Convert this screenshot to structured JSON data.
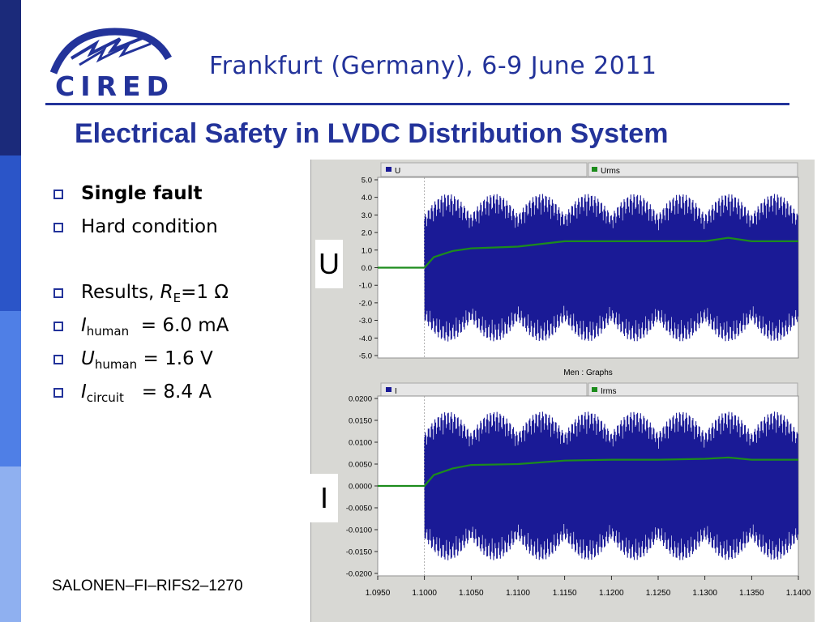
{
  "header": {
    "conference": "Frankfurt (Germany), 6-9 June 2011",
    "logo_text": "CIRED",
    "title": "Electrical Safety in LVDC Distribution System"
  },
  "bullets": [
    {
      "text": "Single fault",
      "bold": true
    },
    {
      "text": "Hard condition"
    },
    {
      "prefix": "Results, ",
      "sym": "R",
      "sub": "E",
      "rest": "=1 Ω"
    },
    {
      "sym": "I",
      "sub": "human",
      "rest": "= 6.0 mA"
    },
    {
      "sym": "U",
      "sub": "human",
      "rest": "= 1.6 V"
    },
    {
      "sym": "I",
      "sub": "circuit",
      "rest": "= 8.4 A"
    }
  ],
  "footer": "SALONEN–FI–RIFS2–1270",
  "colors": {
    "brand_blue": "#23339a",
    "signal_blue": "#1a1a96",
    "rms_green": "#1c8c1c",
    "side_bands": [
      "#1b2a7a",
      "#2b55c8",
      "#4f7fe6",
      "#8fb0f0"
    ]
  },
  "tags": {
    "upper": "U",
    "lower": "I"
  },
  "chart_data": [
    {
      "type": "line",
      "legend": [
        "U",
        "Urms"
      ],
      "legend_colors": [
        "#1a1a96",
        "#1c8c1c"
      ],
      "ylim": [
        -5.0,
        5.0
      ],
      "yticks": [
        "5.0",
        "4.0",
        "3.0",
        "2.0",
        "1.0",
        "0.0",
        "-1.0",
        "-2.0",
        "-3.0",
        "-4.0",
        "-5.0"
      ],
      "xlim": [
        1.095,
        1.14
      ],
      "fault_time": 1.1,
      "series": [
        {
          "name": "U",
          "envelope_amplitude_range": [
            3.0,
            4.2
          ]
        },
        {
          "name": "Urms",
          "x": [
            1.095,
            1.1,
            1.101,
            1.103,
            1.105,
            1.11,
            1.115,
            1.12,
            1.125,
            1.13,
            1.1325,
            1.135,
            1.14
          ],
          "values": [
            0.0,
            0.0,
            0.6,
            0.95,
            1.1,
            1.2,
            1.5,
            1.5,
            1.5,
            1.5,
            1.7,
            1.5,
            1.5
          ]
        }
      ],
      "footer_label": "Men : Graphs"
    },
    {
      "type": "line",
      "legend": [
        "I",
        "Irms"
      ],
      "legend_colors": [
        "#1a1a96",
        "#1c8c1c"
      ],
      "ylim": [
        -0.02,
        0.02
      ],
      "yticks": [
        "0.0200",
        "0.0150",
        "0.0100",
        "0.0050",
        "0.0000",
        "-0.0050",
        "-0.0100",
        "-0.0150",
        "-0.0200"
      ],
      "xlim": [
        1.095,
        1.14
      ],
      "xticks": [
        "1.0950",
        "1.1000",
        "1.1050",
        "1.1100",
        "1.1150",
        "1.1200",
        "1.1250",
        "1.1300",
        "1.1350",
        "1.1400"
      ],
      "fault_time": 1.1,
      "series": [
        {
          "name": "I",
          "envelope_amplitude_range": [
            0.012,
            0.017
          ]
        },
        {
          "name": "Irms",
          "x": [
            1.095,
            1.1,
            1.101,
            1.103,
            1.105,
            1.11,
            1.115,
            1.12,
            1.125,
            1.13,
            1.1325,
            1.135,
            1.14
          ],
          "values": [
            0.0,
            0.0,
            0.0025,
            0.004,
            0.0048,
            0.005,
            0.0058,
            0.006,
            0.006,
            0.0062,
            0.0065,
            0.006,
            0.006
          ]
        }
      ]
    }
  ]
}
